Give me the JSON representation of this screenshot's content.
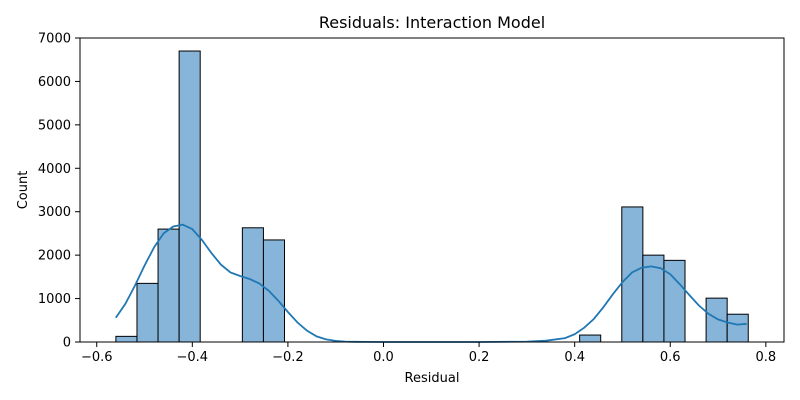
{
  "chart_data": {
    "type": "bar",
    "title": "Residuals: Interaction Model",
    "xlabel": "Residual",
    "ylabel": "Count",
    "xlim": [
      -0.635,
      0.838
    ],
    "ylim": [
      0,
      7000
    ],
    "xticks": [
      -0.6,
      -0.4,
      -0.2,
      0.0,
      0.2,
      0.4,
      0.6,
      0.8
    ],
    "xtick_labels": [
      "−0.6",
      "−0.4",
      "−0.2",
      "0.0",
      "0.2",
      "0.4",
      "0.6",
      "0.8"
    ],
    "yticks": [
      0,
      1000,
      2000,
      3000,
      4000,
      5000,
      6000,
      7000
    ],
    "ytick_labels": [
      "0",
      "1000",
      "2000",
      "3000",
      "4000",
      "5000",
      "6000",
      "7000"
    ],
    "grid": false,
    "bins": [
      {
        "x0": -0.5599,
        "x1": -0.5158,
        "count": 130
      },
      {
        "x0": -0.5158,
        "x1": -0.4717,
        "count": 1350
      },
      {
        "x0": -0.4717,
        "x1": -0.4276,
        "count": 2600
      },
      {
        "x0": -0.4276,
        "x1": -0.3835,
        "count": 6700
      },
      {
        "x0": -0.2953,
        "x1": -0.2512,
        "count": 2630
      },
      {
        "x0": -0.2512,
        "x1": -0.2071,
        "count": 2350
      },
      {
        "x0": 0.4104,
        "x1": 0.4545,
        "count": 160
      },
      {
        "x0": 0.4986,
        "x1": 0.5427,
        "count": 3110
      },
      {
        "x0": 0.5427,
        "x1": 0.5868,
        "count": 2000
      },
      {
        "x0": 0.5868,
        "x1": 0.6309,
        "count": 1880
      },
      {
        "x0": 0.675,
        "x1": 0.7191,
        "count": 1010
      },
      {
        "x0": 0.7191,
        "x1": 0.7632,
        "count": 640
      }
    ],
    "kde": {
      "x": [
        -0.56,
        -0.54,
        -0.52,
        -0.5,
        -0.48,
        -0.46,
        -0.44,
        -0.42,
        -0.4,
        -0.38,
        -0.36,
        -0.34,
        -0.32,
        -0.3,
        -0.28,
        -0.26,
        -0.24,
        -0.22,
        -0.2,
        -0.18,
        -0.16,
        -0.14,
        -0.12,
        -0.1,
        -0.08,
        -0.06,
        -0.04,
        0.0,
        0.1,
        0.2,
        0.3,
        0.34,
        0.38,
        0.4,
        0.42,
        0.44,
        0.46,
        0.48,
        0.5,
        0.52,
        0.54,
        0.56,
        0.58,
        0.6,
        0.62,
        0.64,
        0.66,
        0.68,
        0.7,
        0.72,
        0.74,
        0.76
      ],
      "y": [
        560,
        880,
        1300,
        1760,
        2180,
        2500,
        2660,
        2700,
        2600,
        2350,
        2050,
        1780,
        1600,
        1520,
        1450,
        1350,
        1180,
        950,
        690,
        450,
        260,
        130,
        60,
        25,
        10,
        5,
        2,
        0,
        0,
        0,
        10,
        30,
        90,
        180,
        330,
        530,
        800,
        1100,
        1380,
        1600,
        1710,
        1740,
        1700,
        1560,
        1330,
        1080,
        840,
        650,
        520,
        450,
        400,
        420
      ]
    },
    "colors": {
      "bar_fill": "#87b5d9",
      "bar_edge": "#000000",
      "kde_line": "#1f77b4"
    }
  }
}
